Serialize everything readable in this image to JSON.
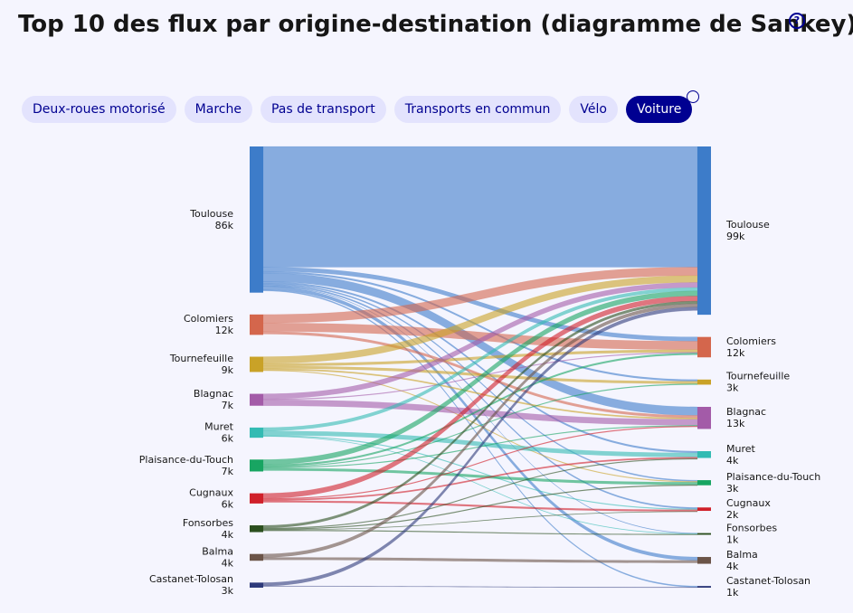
{
  "title": "Top 10 des flux par origine-destination (diagramme de Sankey)",
  "tabs": [
    {
      "label": "Deux-roues motorisé",
      "active": false
    },
    {
      "label": "Marche",
      "active": false
    },
    {
      "label": "Pas de transport",
      "active": false
    },
    {
      "label": "Transports en commun",
      "active": false
    },
    {
      "label": "Vélo",
      "active": false
    },
    {
      "label": "Voiture",
      "active": true
    }
  ],
  "chart_data": {
    "type": "sankey",
    "sources": [
      {
        "name": "Toulouse",
        "value": 86000,
        "value_label": "86k",
        "color": "#3d7cc9"
      },
      {
        "name": "Colomiers",
        "value": 12000,
        "value_label": "12k",
        "color": "#d4664c"
      },
      {
        "name": "Tournefeuille",
        "value": 9000,
        "value_label": "9k",
        "color": "#c9a227"
      },
      {
        "name": "Blagnac",
        "value": 7000,
        "value_label": "7k",
        "color": "#a35ba8"
      },
      {
        "name": "Muret",
        "value": 6000,
        "value_label": "6k",
        "color": "#33bbb3"
      },
      {
        "name": "Plaisance-du-Touch",
        "value": 7000,
        "value_label": "7k",
        "color": "#18a562"
      },
      {
        "name": "Cugnaux",
        "value": 6000,
        "value_label": "6k",
        "color": "#d0202a"
      },
      {
        "name": "Fonsorbes",
        "value": 4000,
        "value_label": "4k",
        "color": "#2b4f1e"
      },
      {
        "name": "Balma",
        "value": 4000,
        "value_label": "4k",
        "color": "#6b5448"
      },
      {
        "name": "Castanet-Tolosan",
        "value": 3000,
        "value_label": "3k",
        "color": "#2e3a7a"
      }
    ],
    "targets": [
      {
        "name": "Toulouse",
        "value": 99000,
        "value_label": "99k",
        "color": "#3d7cc9"
      },
      {
        "name": "Colomiers",
        "value": 12000,
        "value_label": "12k",
        "color": "#d4664c"
      },
      {
        "name": "Tournefeuille",
        "value": 3000,
        "value_label": "3k",
        "color": "#c9a227"
      },
      {
        "name": "Blagnac",
        "value": 13000,
        "value_label": "13k",
        "color": "#a35ba8"
      },
      {
        "name": "Muret",
        "value": 4000,
        "value_label": "4k",
        "color": "#33bbb3"
      },
      {
        "name": "Plaisance-du-Touch",
        "value": 3000,
        "value_label": "3k",
        "color": "#18a562"
      },
      {
        "name": "Cugnaux",
        "value": 2000,
        "value_label": "2k",
        "color": "#d0202a"
      },
      {
        "name": "Fonsorbes",
        "value": 1000,
        "value_label": "1k",
        "color": "#2b4f1e"
      },
      {
        "name": "Balma",
        "value": 4000,
        "value_label": "4k",
        "color": "#6b5448"
      },
      {
        "name": "Castanet-Tolosan",
        "value": 1000,
        "value_label": "1k",
        "color": "#2e3a7a"
      }
    ],
    "links": [
      {
        "source": "Toulouse",
        "target": "Toulouse",
        "value": 71000
      },
      {
        "source": "Toulouse",
        "target": "Colomiers",
        "value": 2500
      },
      {
        "source": "Toulouse",
        "target": "Tournefeuille",
        "value": 1000
      },
      {
        "source": "Toulouse",
        "target": "Blagnac",
        "value": 5000
      },
      {
        "source": "Toulouse",
        "target": "Muret",
        "value": 1000
      },
      {
        "source": "Toulouse",
        "target": "Plaisance-du-Touch",
        "value": 700
      },
      {
        "source": "Toulouse",
        "target": "Cugnaux",
        "value": 800
      },
      {
        "source": "Toulouse",
        "target": "Fonsorbes",
        "value": 300
      },
      {
        "source": "Toulouse",
        "target": "Balma",
        "value": 2000
      },
      {
        "source": "Toulouse",
        "target": "Castanet-Tolosan",
        "value": 700
      },
      {
        "source": "Colomiers",
        "target": "Toulouse",
        "value": 5000
      },
      {
        "source": "Colomiers",
        "target": "Colomiers",
        "value": 5000
      },
      {
        "source": "Colomiers",
        "target": "Blagnac",
        "value": 1500
      },
      {
        "source": "Tournefeuille",
        "target": "Toulouse",
        "value": 4000
      },
      {
        "source": "Tournefeuille",
        "target": "Colomiers",
        "value": 1500
      },
      {
        "source": "Tournefeuille",
        "target": "Tournefeuille",
        "value": 1500
      },
      {
        "source": "Tournefeuille",
        "target": "Blagnac",
        "value": 800
      },
      {
        "source": "Tournefeuille",
        "target": "Plaisance-du-Touch",
        "value": 500
      },
      {
        "source": "Blagnac",
        "target": "Toulouse",
        "value": 3000
      },
      {
        "source": "Blagnac",
        "target": "Colomiers",
        "value": 500
      },
      {
        "source": "Blagnac",
        "target": "Blagnac",
        "value": 3500
      },
      {
        "source": "Muret",
        "target": "Toulouse",
        "value": 2000
      },
      {
        "source": "Muret",
        "target": "Muret",
        "value": 2500
      },
      {
        "source": "Muret",
        "target": "Cugnaux",
        "value": 500
      },
      {
        "source": "Muret",
        "target": "Fonsorbes",
        "value": 300
      },
      {
        "source": "Plaisance-du-Touch",
        "target": "Toulouse",
        "value": 3000
      },
      {
        "source": "Plaisance-du-Touch",
        "target": "Colomiers",
        "value": 1000
      },
      {
        "source": "Plaisance-du-Touch",
        "target": "Tournefeuille",
        "value": 500
      },
      {
        "source": "Plaisance-du-Touch",
        "target": "Blagnac",
        "value": 500
      },
      {
        "source": "Plaisance-du-Touch",
        "target": "Plaisance-du-Touch",
        "value": 1500
      },
      {
        "source": "Cugnaux",
        "target": "Toulouse",
        "value": 3000
      },
      {
        "source": "Cugnaux",
        "target": "Blagnac",
        "value": 500
      },
      {
        "source": "Cugnaux",
        "target": "Muret",
        "value": 800
      },
      {
        "source": "Cugnaux",
        "target": "Cugnaux",
        "value": 1000
      },
      {
        "source": "Fonsorbes",
        "target": "Toulouse",
        "value": 1500
      },
      {
        "source": "Fonsorbes",
        "target": "Muret",
        "value": 500
      },
      {
        "source": "Fonsorbes",
        "target": "Plaisance-du-Touch",
        "value": 500
      },
      {
        "source": "Fonsorbes",
        "target": "Cugnaux",
        "value": 300
      },
      {
        "source": "Fonsorbes",
        "target": "Fonsorbes",
        "value": 500
      },
      {
        "source": "Balma",
        "target": "Toulouse",
        "value": 2000
      },
      {
        "source": "Balma",
        "target": "Balma",
        "value": 1500
      },
      {
        "source": "Castanet-Tolosan",
        "target": "Toulouse",
        "value": 2000
      },
      {
        "source": "Castanet-Tolosan",
        "target": "Castanet-Tolosan",
        "value": 300
      }
    ]
  }
}
